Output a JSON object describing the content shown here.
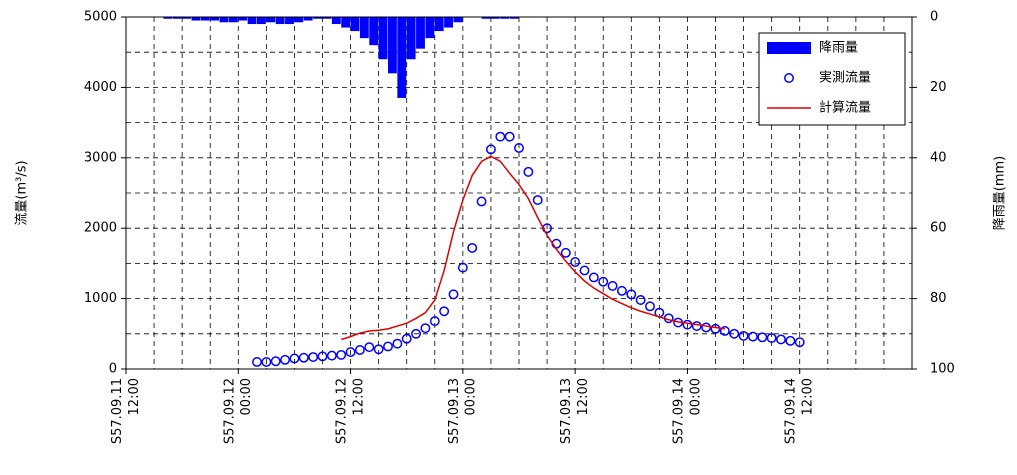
{
  "chart_data": {
    "type": "combo",
    "ylabel": "流量(m³/s)",
    "y2label": "降雨量(mm)",
    "xlim": [
      0,
      84
    ],
    "xticks": [
      {
        "value": 0,
        "label": "S57.09.11 12:00"
      },
      {
        "value": 12,
        "label": "S57.09.12 00:00"
      },
      {
        "value": 24,
        "label": "S57.09.12 12:00"
      },
      {
        "value": 36,
        "label": "S57.09.13 00:00"
      },
      {
        "value": 48,
        "label": "S57.09.13 12:00"
      },
      {
        "value": 60,
        "label": "S57.09.14 00:00"
      },
      {
        "value": 72,
        "label": "S57.09.14 12:00"
      }
    ],
    "xgrid": [
      3,
      6,
      9,
      12,
      15,
      18,
      21,
      24,
      27,
      30,
      33,
      36,
      39,
      42,
      45,
      48,
      51,
      54,
      57,
      60,
      63,
      66,
      69,
      72,
      75,
      78,
      81
    ],
    "ylim": [
      0,
      5000
    ],
    "yticks": [
      0,
      1000,
      2000,
      3000,
      4000,
      5000
    ],
    "ygrid": [
      500,
      1000,
      1500,
      2000,
      2500,
      3000,
      3500,
      4000,
      4500
    ],
    "y2lim": [
      100,
      0
    ],
    "y2ticks": [
      0,
      20,
      40,
      60,
      80,
      100
    ],
    "grid": true,
    "legend": "upper right",
    "series": [
      {
        "name": "降雨量",
        "type": "bar",
        "axis": "y2",
        "color": "#0000ff",
        "x": [
          4,
          5,
          6,
          7,
          8,
          9,
          10,
          11,
          12,
          13,
          14,
          15,
          16,
          17,
          18,
          19,
          20,
          21,
          22,
          23,
          24,
          25,
          26,
          27,
          28,
          29,
          30,
          31,
          32,
          33,
          34,
          35,
          36,
          37,
          38,
          39,
          40,
          41
        ],
        "values": [
          0.5,
          0.5,
          0.5,
          1,
          1,
          1,
          1.5,
          1.5,
          1,
          2,
          2,
          1.5,
          2,
          2,
          1.5,
          1,
          0.5,
          0.5,
          2,
          3,
          4,
          6,
          8,
          12,
          16,
          23,
          12,
          9,
          6,
          4,
          3,
          1.5,
          0,
          0,
          0.5,
          0.5,
          0.5,
          0.5
        ]
      },
      {
        "name": "実測流量",
        "type": "scatter",
        "color": "#0000ff",
        "x": [
          14,
          15,
          16,
          17,
          18,
          19,
          20,
          21,
          22,
          23,
          24,
          25,
          26,
          27,
          28,
          29,
          30,
          31,
          32,
          33,
          34,
          35,
          36,
          37,
          38,
          39,
          40,
          41,
          42,
          43,
          44,
          45,
          46,
          47,
          48,
          49,
          50,
          51,
          52,
          53,
          54,
          55,
          56,
          57,
          58,
          59,
          60,
          61,
          62,
          63,
          64,
          65,
          66,
          67,
          68,
          69,
          70,
          71,
          72
        ],
        "values": [
          100,
          100,
          110,
          130,
          150,
          160,
          170,
          180,
          190,
          200,
          240,
          270,
          310,
          280,
          320,
          360,
          430,
          500,
          580,
          680,
          820,
          1060,
          1440,
          1720,
          2380,
          3120,
          3300,
          3300,
          3140,
          2800,
          2400,
          2000,
          1780,
          1650,
          1520,
          1400,
          1300,
          1240,
          1180,
          1110,
          1060,
          980,
          890,
          800,
          720,
          660,
          630,
          610,
          590,
          570,
          540,
          500,
          470,
          460,
          450,
          440,
          420,
          400,
          380
        ]
      },
      {
        "name": "計算流量",
        "type": "line",
        "color": "#e00000",
        "x": [
          23,
          24,
          25,
          26,
          27,
          28,
          29,
          30,
          31,
          32,
          33,
          34,
          35,
          36,
          37,
          38,
          39,
          40,
          41,
          42,
          43,
          44,
          45,
          46,
          47,
          48,
          49,
          50,
          51,
          52,
          53,
          54,
          55,
          56,
          57,
          58,
          59,
          60,
          61,
          62,
          63,
          64
        ],
        "values": [
          420,
          460,
          510,
          540,
          550,
          570,
          610,
          650,
          720,
          800,
          980,
          1400,
          1950,
          2400,
          2750,
          2950,
          3020,
          2950,
          2780,
          2620,
          2420,
          2150,
          1900,
          1700,
          1530,
          1380,
          1250,
          1150,
          1070,
          990,
          930,
          870,
          820,
          780,
          740,
          700,
          670,
          650,
          630,
          610,
          590,
          570
        ]
      }
    ]
  }
}
